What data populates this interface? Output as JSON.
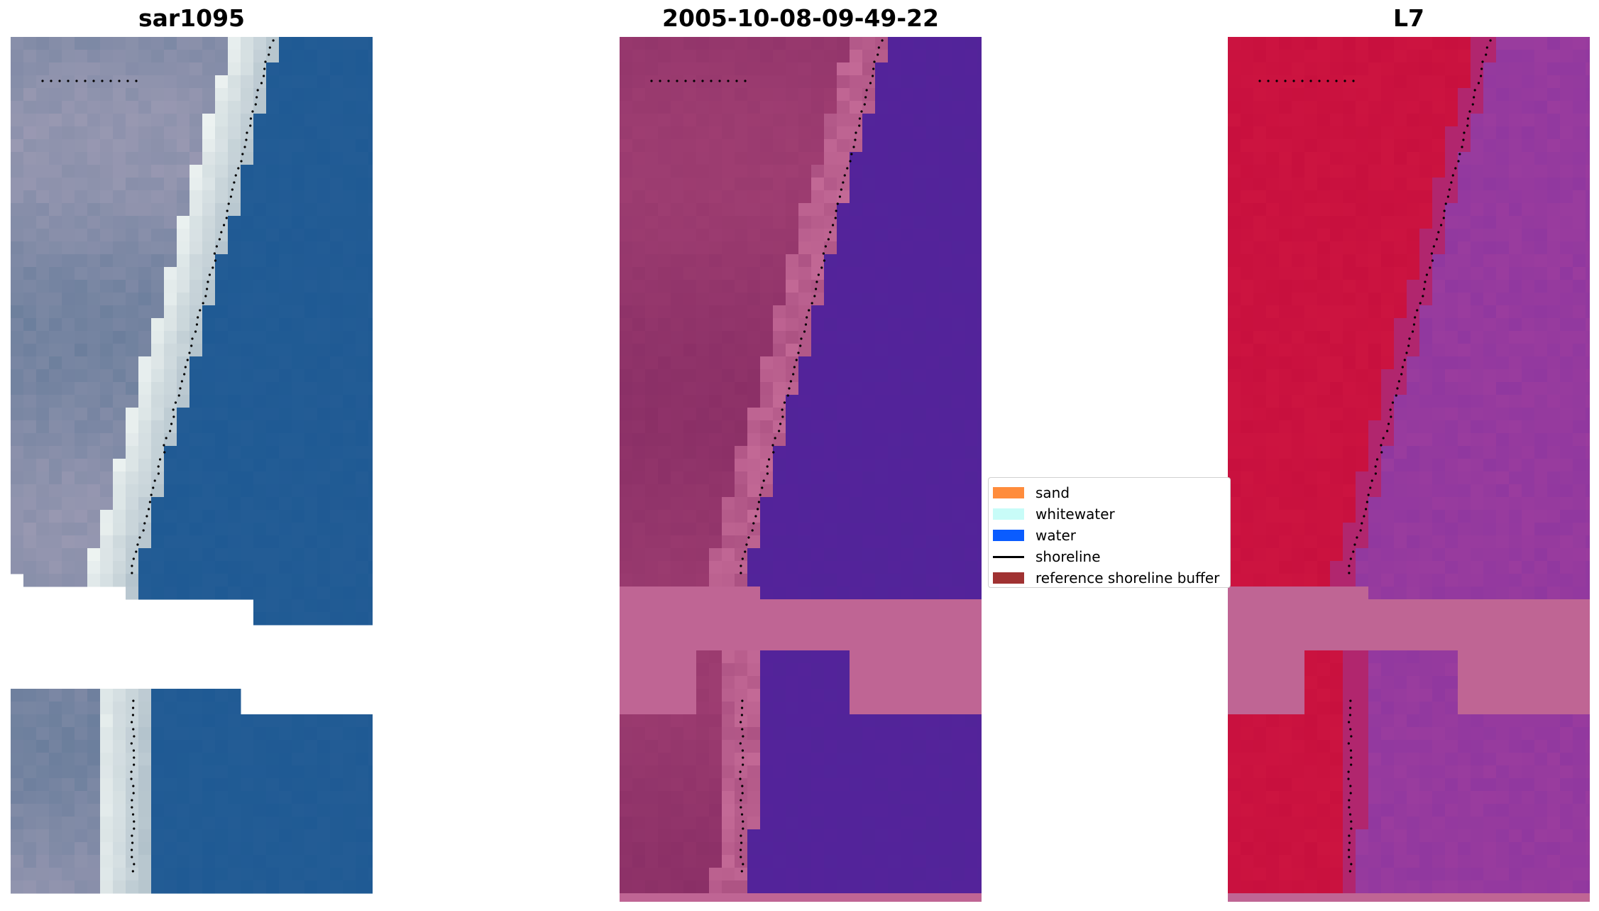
{
  "panels": [
    {
      "title": "sar1095",
      "kind": "rgb"
    },
    {
      "title": "2005-10-08-09-49-22",
      "kind": "classified"
    },
    {
      "title": "L7",
      "kind": "mndwi"
    }
  ],
  "legend": {
    "items": [
      {
        "label": "sand",
        "type": "patch",
        "color": "#ff8c3c"
      },
      {
        "label": "whitewater",
        "type": "patch",
        "color": "#c8fcf8"
      },
      {
        "label": "water",
        "type": "patch",
        "color": "#0a5cff"
      },
      {
        "label": "shoreline",
        "type": "line",
        "color": "#000000"
      },
      {
        "label": "reference shoreline buffer",
        "type": "patch",
        "color": "#a03232"
      }
    ]
  },
  "colors": {
    "water_rgb": "#1f5a94",
    "land_rgb": "#6b7e9c",
    "surf_rgb": "#eef4f2",
    "classified_water": "#54239a",
    "classified_land": "#8a2f66",
    "classified_buffer": "#bf6594",
    "mndwi_land": "#c8103e",
    "mndwi_water": "#9a3c9e",
    "mndwi_buffer": "#bf6594",
    "shoreline_dots": "#000000"
  }
}
